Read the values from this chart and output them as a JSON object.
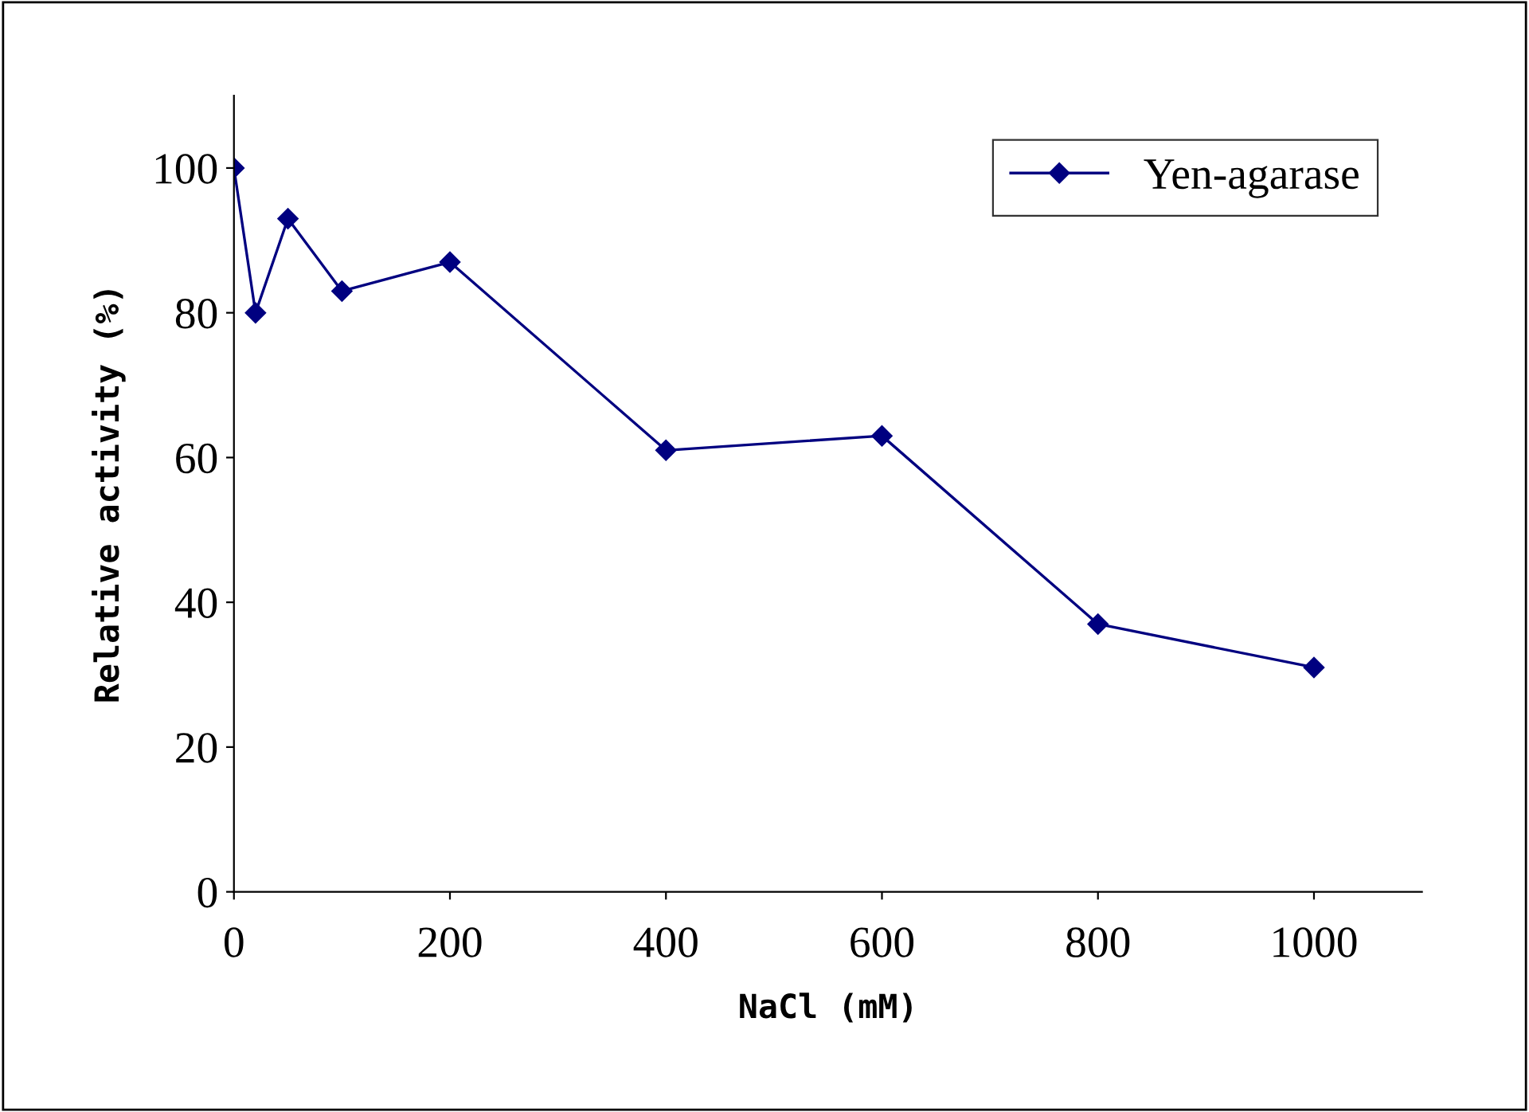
{
  "chart_data": {
    "type": "line",
    "xlabel": "NaCl (mM)",
    "ylabel": "Relative activity (%)",
    "x": [
      0,
      20,
      50,
      100,
      200,
      400,
      600,
      800,
      1000
    ],
    "series": [
      {
        "name": "Yen-agarase",
        "color": "#000080",
        "values": [
          100,
          80,
          93,
          83,
          87,
          61,
          63,
          37,
          31
        ]
      }
    ],
    "xlim": [
      0,
      1100
    ],
    "xticks": [
      0,
      200,
      400,
      600,
      800,
      1000
    ],
    "ylim": [
      0,
      110
    ],
    "yticks": [
      0,
      20,
      40,
      60,
      80,
      100
    ],
    "marker": "diamond",
    "line_style": "solid",
    "grid": false,
    "legend": "top right"
  }
}
